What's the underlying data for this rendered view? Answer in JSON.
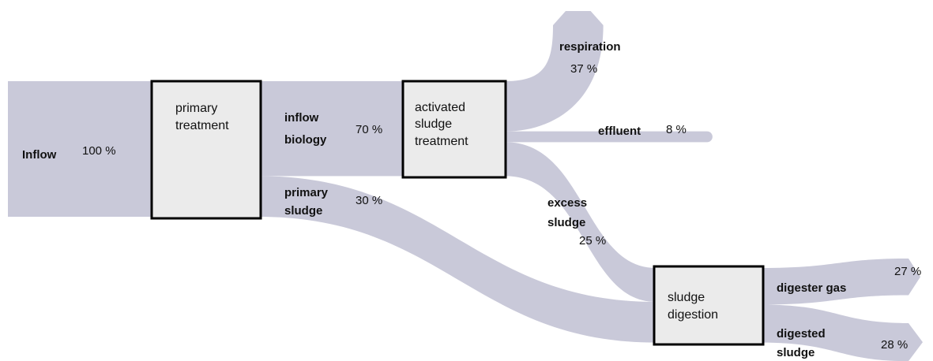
{
  "nodes": [
    {
      "lines": [
        "primary",
        "treatment"
      ]
    },
    {
      "lines": [
        "activated",
        "sludge",
        "treatment"
      ]
    },
    {
      "lines": [
        "sludge",
        "digestion"
      ]
    }
  ],
  "flows": [
    {
      "name": [
        "Inflow"
      ],
      "value": 100,
      "value_label": "100 %"
    },
    {
      "name": [
        "inflow",
        "biology"
      ],
      "value": 70,
      "value_label": "70 %"
    },
    {
      "name": [
        "primary",
        "sludge"
      ],
      "value": 30,
      "value_label": "30 %"
    },
    {
      "name": [
        "respiration"
      ],
      "value": 37,
      "value_label": "37 %"
    },
    {
      "name": [
        "effluent"
      ],
      "value": 8,
      "value_label": "8 %"
    },
    {
      "name": [
        "excess",
        "sludge"
      ],
      "value": 25,
      "value_label": "25 %"
    },
    {
      "name": [
        "digester gas"
      ],
      "value": 27,
      "value_label": "27 %"
    },
    {
      "name": [
        "digested",
        "sludge"
      ],
      "value": 28,
      "value_label": "28 %"
    }
  ]
}
